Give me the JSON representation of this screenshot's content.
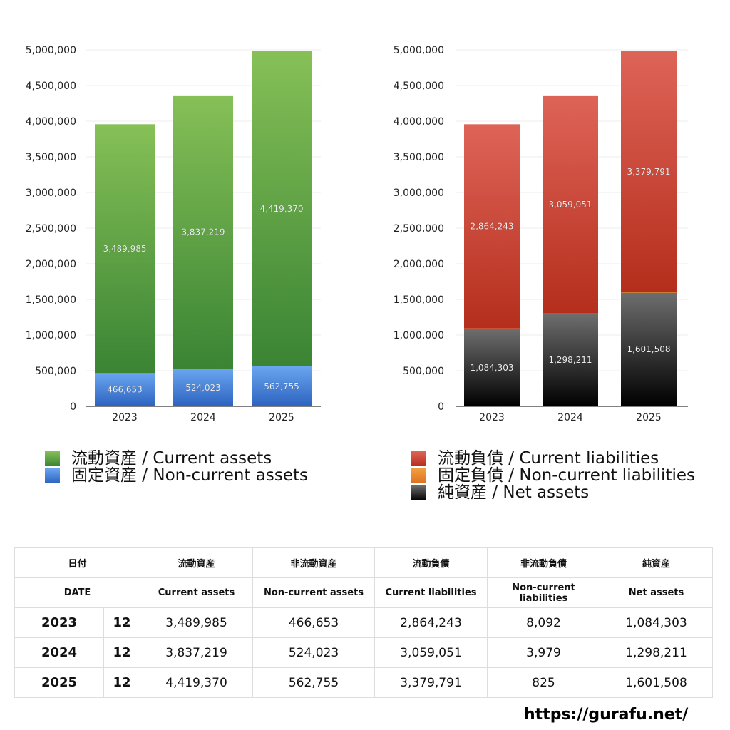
{
  "chart_data": [
    {
      "type": "bar",
      "stacked": true,
      "categories": [
        "2023",
        "2024",
        "2025"
      ],
      "ylim": [
        0,
        5000000
      ],
      "yticks": [
        "0",
        "500,000",
        "1,000,000",
        "1,500,000",
        "2,000,000",
        "2,500,000",
        "3,000,000",
        "3,500,000",
        "4,000,000",
        "4,500,000",
        "5,000,000"
      ],
      "grid": true,
      "legend": "bottom",
      "series": [
        {
          "name": "固定資産 / Non-current assets",
          "values": [
            466653,
            524023,
            562755
          ],
          "labels": [
            "466,653",
            "524,023",
            "562,755"
          ],
          "colors": [
            "#6aa5f0",
            "#2c63c0"
          ]
        },
        {
          "name": "流動資産 / Current assets",
          "values": [
            3489985,
            3837219,
            4419370
          ],
          "labels": [
            "3,489,985",
            "3,837,219",
            "4,419,370"
          ],
          "colors": [
            "#86c057",
            "#3a8434"
          ]
        }
      ]
    },
    {
      "type": "bar",
      "stacked": true,
      "categories": [
        "2023",
        "2024",
        "2025"
      ],
      "ylim": [
        0,
        5000000
      ],
      "yticks": [
        "0",
        "500,000",
        "1,000,000",
        "1,500,000",
        "2,000,000",
        "2,500,000",
        "3,000,000",
        "3,500,000",
        "4,000,000",
        "4,500,000",
        "5,000,000"
      ],
      "grid": true,
      "legend": "bottom",
      "series": [
        {
          "name": "純資産 / Net assets",
          "values": [
            1084303,
            1298211,
            1601508
          ],
          "labels": [
            "1,084,303",
            "1,298,211",
            "1,601,508"
          ],
          "colors": [
            "#6e6e6e",
            "#000000"
          ]
        },
        {
          "name": "固定負債 / Non-current liabilities",
          "values": [
            8092,
            3979,
            825
          ],
          "labels": [
            "8,092",
            "3,979",
            "825"
          ],
          "colors": [
            "#f0a040",
            "#e07020"
          ]
        },
        {
          "name": "流動負債 / Current liabilities",
          "values": [
            2864243,
            3059051,
            3379791
          ],
          "labels": [
            "2,864,243",
            "3,059,051",
            "3,379,791"
          ],
          "colors": [
            "#de6458",
            "#b52e1c"
          ]
        }
      ]
    }
  ],
  "legend_left": [
    {
      "label": "流動資産 / Current assets",
      "color": "#4e9a3e"
    },
    {
      "label": "固定資産 / Non-current assets",
      "color": "#3d7bd8"
    }
  ],
  "legend_right": [
    {
      "label": "流動負債 / Current liabilities",
      "color": "#c9402e"
    },
    {
      "label": "固定負債 / Non-current liabilities",
      "color": "#e6873a"
    },
    {
      "label": "純資産 / Net assets",
      "color": "#333333"
    }
  ],
  "table": {
    "header_jp": [
      "日付",
      "流動資産",
      "非流動資産",
      "流動負債",
      "非流動負債",
      "純資産"
    ],
    "header_en": [
      "DATE",
      "Current assets",
      "Non-current assets",
      "Current liabilities",
      "Non-current liabilities",
      "Net assets"
    ],
    "rows": [
      [
        "2023",
        "12",
        "3,489,985",
        "466,653",
        "2,864,243",
        "8,092",
        "1,084,303"
      ],
      [
        "2024",
        "12",
        "3,837,219",
        "524,023",
        "3,059,051",
        "3,979",
        "1,298,211"
      ],
      [
        "2025",
        "12",
        "4,419,370",
        "562,755",
        "3,379,791",
        "825",
        "1,601,508"
      ]
    ]
  },
  "footer": {
    "url": "https://gurafu.net/"
  }
}
